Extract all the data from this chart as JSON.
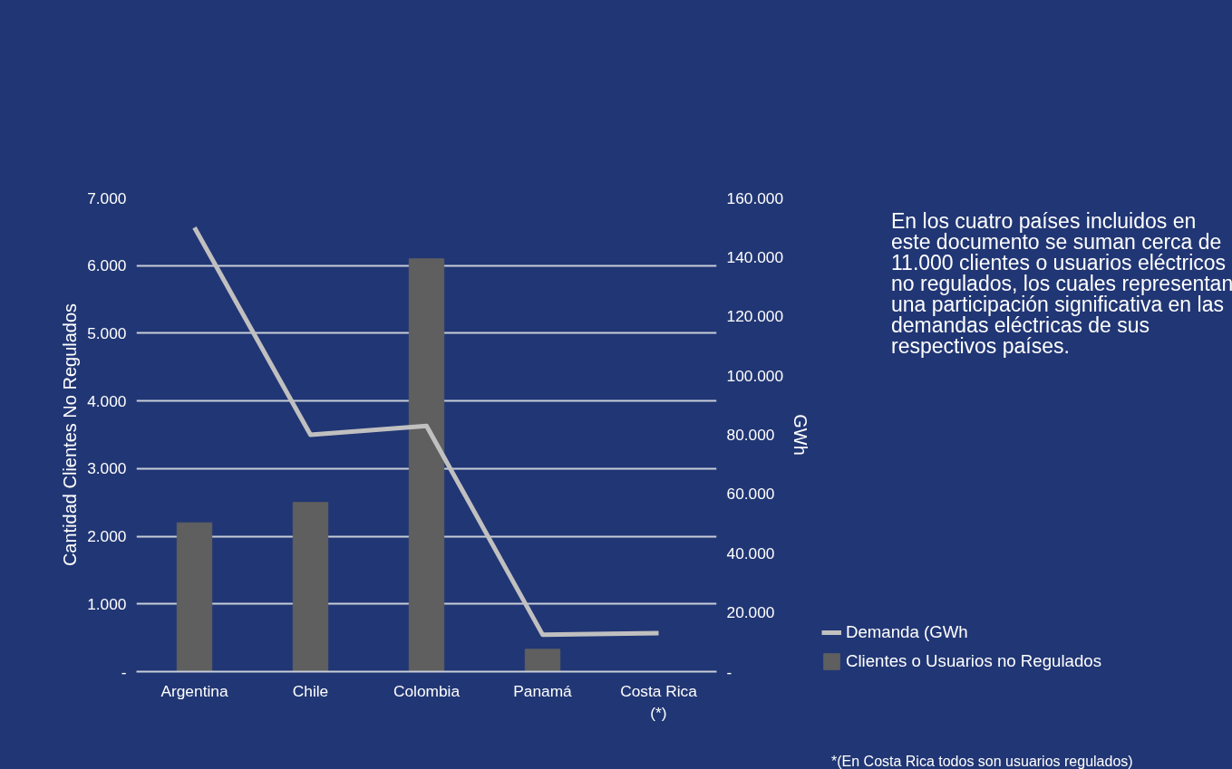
{
  "chart_data": {
    "type": "bar",
    "categories": [
      "Argentina",
      "Chile",
      "Colombia",
      "Panamá",
      "Costa Rica\n(*)"
    ],
    "series": [
      {
        "name": "Demanda (GWh",
        "type": "line",
        "axis": "y2",
        "color": "#c0c0c0",
        "values": [
          150000,
          80000,
          83000,
          12500,
          13000
        ]
      },
      {
        "name": "Clientes o Usuarios no Regulados",
        "color": "#5f5f5f",
        "values": [
          2200,
          2500,
          6100,
          330,
          null
        ]
      }
    ],
    "ylabel": "Cantidad Clientes No Regulados",
    "y2label": "GWh",
    "ylim": [
      0,
      7000
    ],
    "yticks": [
      {
        "value": 0,
        "label": "-"
      },
      {
        "value": 1000,
        "label": "1.000"
      },
      {
        "value": 2000,
        "label": "2.000"
      },
      {
        "value": 3000,
        "label": "3.000"
      },
      {
        "value": 4000,
        "label": "4.000"
      },
      {
        "value": 5000,
        "label": "5.000"
      },
      {
        "value": 6000,
        "label": "6.000"
      },
      {
        "value": 7000,
        "label": "7.000"
      }
    ],
    "y2lim": [
      0,
      160000
    ],
    "y2ticks": [
      {
        "value": 0,
        "label": "-"
      },
      {
        "value": 20000,
        "label": "20.000"
      },
      {
        "value": 40000,
        "label": "40.000"
      },
      {
        "value": 60000,
        "label": "60.000"
      },
      {
        "value": 80000,
        "label": "80.000"
      },
      {
        "value": 100000,
        "label": "100.000"
      },
      {
        "value": 120000,
        "label": "120.000"
      },
      {
        "value": 140000,
        "label": "140.000"
      },
      {
        "value": 160000,
        "label": "160.000"
      }
    ],
    "grid": "y",
    "legend": "bottom right",
    "annotations": [
      "En los cuatro países incluidos en este documento se suman cerca de 11.000 clientes o usuarios eléctricos no regulados, los cuales representan una participación significativa en las demandas eléctricas de sus respectivos países.",
      "*(En Costa Rica todos son usuarios regulados)"
    ]
  }
}
